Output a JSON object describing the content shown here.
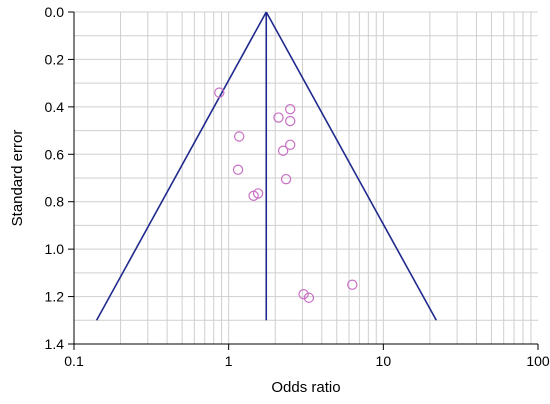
{
  "chart_data": {
    "type": "scatter",
    "title": "",
    "xlabel": "Odds ratio",
    "ylabel": "Standard error",
    "x_scale": "log",
    "y_axis_inverted": true,
    "xlim": [
      0.1,
      100
    ],
    "ylim": [
      0,
      1.4
    ],
    "x_ticks": [
      {
        "value": 0.1,
        "label": "0.1"
      },
      {
        "value": 1,
        "label": "1"
      },
      {
        "value": 10,
        "label": "10"
      },
      {
        "value": 100,
        "label": "100"
      }
    ],
    "y_ticks": [
      {
        "value": 0.0,
        "label": "0.0"
      },
      {
        "value": 0.2,
        "label": "0.2"
      },
      {
        "value": 0.4,
        "label": "0.4"
      },
      {
        "value": 0.6,
        "label": "0.6"
      },
      {
        "value": 0.8,
        "label": "0.8"
      },
      {
        "value": 1.0,
        "label": "1.0"
      },
      {
        "value": 1.2,
        "label": "1.2"
      },
      {
        "value": 1.4,
        "label": "1.4"
      }
    ],
    "grid": true,
    "pooled_odds_ratio": 1.75,
    "funnel": {
      "apex": {
        "x": 1.75,
        "y": 0.0
      },
      "left_base": {
        "x": 0.14,
        "y": 1.3
      },
      "right_base": {
        "x": 22,
        "y": 1.3
      }
    },
    "points": [
      {
        "x": 0.87,
        "y": 0.34
      },
      {
        "x": 2.5,
        "y": 0.41
      },
      {
        "x": 2.1,
        "y": 0.445
      },
      {
        "x": 2.5,
        "y": 0.46
      },
      {
        "x": 1.17,
        "y": 0.525
      },
      {
        "x": 2.5,
        "y": 0.56
      },
      {
        "x": 2.25,
        "y": 0.585
      },
      {
        "x": 1.15,
        "y": 0.665
      },
      {
        "x": 2.35,
        "y": 0.705
      },
      {
        "x": 1.55,
        "y": 0.765
      },
      {
        "x": 1.45,
        "y": 0.775
      },
      {
        "x": 6.3,
        "y": 1.15
      },
      {
        "x": 3.05,
        "y": 1.19
      },
      {
        "x": 3.3,
        "y": 1.205
      }
    ],
    "colors": {
      "funnel": "#1f2a8c",
      "points": "#c86fc4",
      "grid": "#cfcfcf",
      "axis": "#000000"
    }
  }
}
